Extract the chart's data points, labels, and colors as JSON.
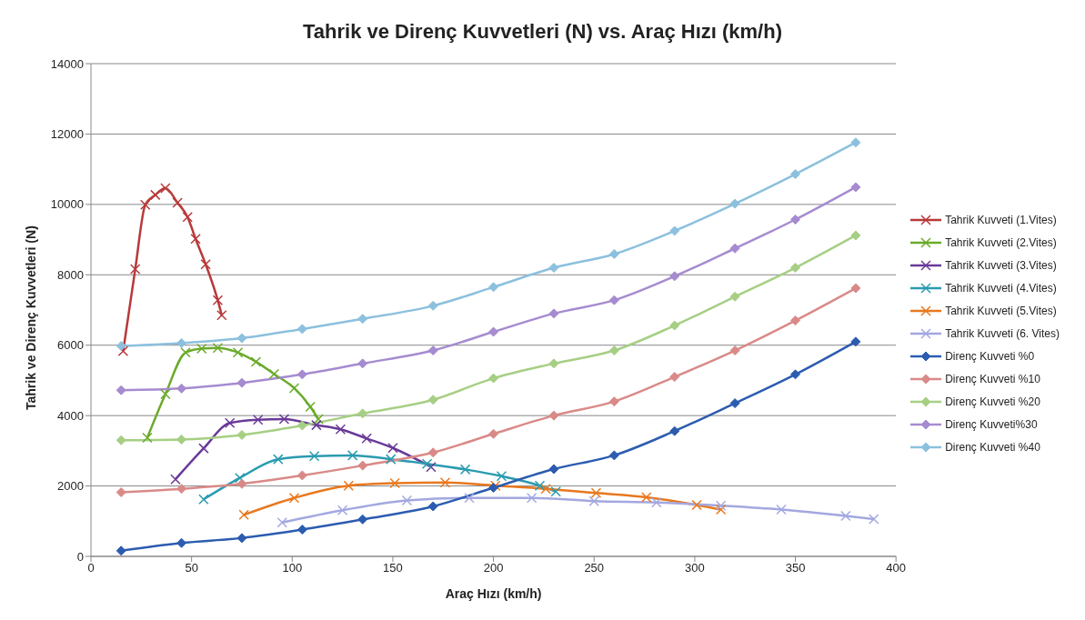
{
  "chart_data": {
    "type": "line",
    "title": "Tahrik ve Direnç Kuvvetleri (N) vs. Araç Hızı (km/h)",
    "xlabel": "Araç Hızı (km/h)",
    "ylabel": "Tahrik ve Direnç Kuvvetleri (N)",
    "xlim": [
      0,
      400
    ],
    "xticks": [
      0,
      50,
      100,
      150,
      200,
      250,
      300,
      350,
      400
    ],
    "ylim": [
      0,
      14000
    ],
    "yticks": [
      0,
      2000,
      4000,
      6000,
      8000,
      10000,
      12000,
      14000
    ],
    "grid": "y",
    "legend": "right",
    "line_style": "solid",
    "series": [
      {
        "name": "Tahrik Kuvveti (1.Vites)",
        "color": "#b8393a",
        "marker": "cross",
        "x": [
          16,
          22,
          27,
          32,
          37,
          43,
          48,
          52,
          57,
          63,
          65
        ],
        "values": [
          5830,
          8160,
          9990,
          10270,
          10460,
          10050,
          9640,
          9020,
          8300,
          7280,
          6850
        ]
      },
      {
        "name": "Tahrik Kuvveti (2.Vites)",
        "color": "#6aab2a",
        "marker": "cross",
        "x": [
          28,
          37,
          47,
          55,
          63,
          73,
          82,
          91,
          101,
          109,
          113
        ],
        "values": [
          3370,
          4610,
          5790,
          5900,
          5920,
          5790,
          5530,
          5180,
          4780,
          4250,
          3900
        ]
      },
      {
        "name": "Tahrik Kuvveti (3.Vites)",
        "color": "#6a3a98",
        "marker": "cross",
        "x": [
          42,
          56,
          69,
          83,
          96,
          112,
          124,
          137,
          150,
          169
        ],
        "values": [
          2190,
          3070,
          3790,
          3880,
          3900,
          3730,
          3610,
          3350,
          3080,
          2540
        ]
      },
      {
        "name": "Tahrik Kuvveti (4.Vites)",
        "color": "#2a9bb0",
        "marker": "cross",
        "x": [
          56,
          74,
          93,
          111,
          130,
          149,
          167,
          186,
          204,
          223,
          231
        ],
        "values": [
          1620,
          2230,
          2760,
          2850,
          2870,
          2760,
          2630,
          2470,
          2280,
          2010,
          1840
        ]
      },
      {
        "name": "Tahrik Kuvveti (5.Vites)",
        "color": "#e8781e",
        "marker": "cross",
        "x": [
          76,
          101,
          128,
          151,
          176,
          201,
          226,
          251,
          276,
          301,
          313
        ],
        "values": [
          1180,
          1660,
          2010,
          2080,
          2100,
          2010,
          1920,
          1800,
          1680,
          1460,
          1330
        ]
      },
      {
        "name": "Tahrik Kuvveti (6. Vites)",
        "color": "#a3a8e0",
        "marker": "cross",
        "x": [
          95,
          125,
          157,
          188,
          219,
          250,
          281,
          313,
          343,
          375,
          389
        ],
        "values": [
          960,
          1310,
          1590,
          1660,
          1660,
          1570,
          1530,
          1440,
          1330,
          1150,
          1060
        ]
      },
      {
        "name": "Direnç Kuvveti %0",
        "color": "#2c5cb0",
        "marker": "diamond",
        "x": [
          15,
          45,
          75,
          105,
          135,
          170,
          200,
          230,
          260,
          290,
          320,
          350,
          380
        ],
        "values": [
          160,
          380,
          520,
          760,
          1050,
          1420,
          1950,
          2480,
          2870,
          3560,
          4350,
          5170,
          6100
        ]
      },
      {
        "name": "Direnç Kuvveti %10",
        "color": "#d98a88",
        "marker": "diamond",
        "x": [
          15,
          45,
          75,
          105,
          135,
          170,
          200,
          230,
          260,
          290,
          320,
          350,
          380
        ],
        "values": [
          1820,
          1920,
          2060,
          2300,
          2580,
          2950,
          3480,
          4000,
          4400,
          5100,
          5850,
          6700,
          7620
        ]
      },
      {
        "name": "Direnç Kuvveti %20",
        "color": "#a6cf84",
        "marker": "diamond",
        "x": [
          15,
          45,
          75,
          105,
          135,
          170,
          200,
          230,
          260,
          290,
          320,
          350,
          380
        ],
        "values": [
          3300,
          3320,
          3450,
          3720,
          4060,
          4450,
          5060,
          5480,
          5850,
          6560,
          7380,
          8200,
          9120
        ]
      },
      {
        "name": "Direnç Kuvveti%30",
        "color": "#a68bd0",
        "marker": "diamond",
        "x": [
          15,
          45,
          75,
          105,
          135,
          170,
          200,
          230,
          260,
          290,
          320,
          350,
          380
        ],
        "values": [
          4720,
          4770,
          4930,
          5170,
          5480,
          5850,
          6380,
          6900,
          7280,
          7960,
          8750,
          9570,
          10490
        ]
      },
      {
        "name": "Direnç Kuvveti %40",
        "color": "#8cc0de",
        "marker": "diamond",
        "x": [
          15,
          45,
          75,
          105,
          135,
          170,
          200,
          230,
          260,
          290,
          320,
          350,
          380
        ],
        "values": [
          5980,
          6060,
          6200,
          6460,
          6750,
          7120,
          7650,
          8200,
          8590,
          9250,
          10020,
          10860,
          11760
        ]
      }
    ]
  }
}
